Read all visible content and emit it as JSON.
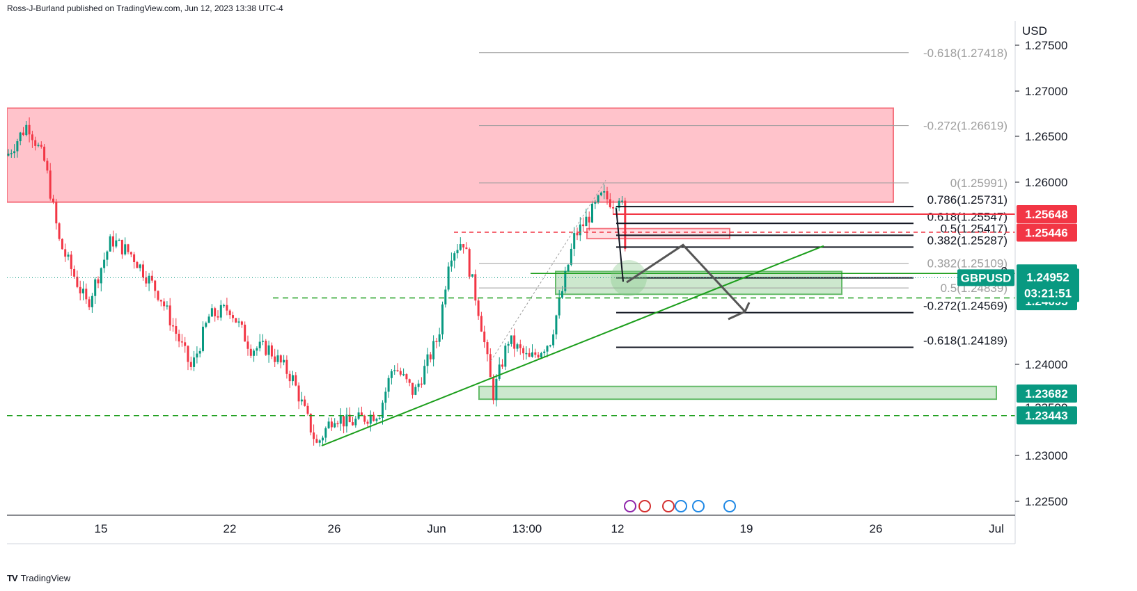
{
  "header": {
    "published_text": "Ross-J-Burland published on TradingView.com, Jun 12, 2023 13:38 UTC-4"
  },
  "footer": {
    "brand": "TradingView",
    "logo_glyph": "TV"
  },
  "chart_data": {
    "type": "candlestick",
    "symbol": "GBPUSD",
    "currency": "USD",
    "y_axis_ticks": [
      "1.27500",
      "1.27000",
      "1.26500",
      "1.26000",
      "1.24000",
      "1.23000",
      "1.22500"
    ],
    "y_axis_partial_tick": "1.23500",
    "x_axis_ticks": [
      "15",
      "22",
      "26",
      "Jun",
      "13:00",
      "12",
      "19",
      "26",
      "Jul"
    ],
    "ylim": [
      1.2237,
      1.2781
    ],
    "fib_upper": [
      {
        "label": "-0.618(1.27418)",
        "level": 1.27418
      },
      {
        "label": "-0.272(1.26619)",
        "level": 1.26619
      },
      {
        "label": "0(1.25991)",
        "level": 1.25991
      },
      {
        "label": "0.382(1.25109)",
        "level": 1.25109
      },
      {
        "label": "0.5(1.24839)",
        "level": 1.24839
      }
    ],
    "fib_lower": [
      {
        "label": "0.786(1.25731)",
        "level": 1.25731
      },
      {
        "label": "0.618(1.25547)",
        "level": 1.25547
      },
      {
        "label": "0.5(1.25417)",
        "level": 1.25417
      },
      {
        "label": "0.382(1.25287)",
        "level": 1.25287
      },
      {
        "label": "0",
        "level": 1.2495
      },
      {
        "label": "-0.272(1.24569)",
        "level": 1.24569
      },
      {
        "label": "-0.618(1.24189)",
        "level": 1.24189
      }
    ],
    "price_tags": [
      {
        "label": "1.25648",
        "value": 1.25648,
        "color": "#f23645"
      },
      {
        "label": "1.25446",
        "value": 1.25446,
        "color": "#f23645"
      },
      {
        "label": "1.24998",
        "value": 1.24998,
        "color": "#089981"
      },
      {
        "label": "1.24695",
        "value": 1.24695,
        "color": "#089981"
      },
      {
        "label": "1.23682",
        "value": 1.23682,
        "color": "#089981"
      },
      {
        "label": "1.23443",
        "value": 1.23443,
        "color": "#089981"
      }
    ],
    "current": {
      "symbol": "GBPUSD",
      "price": "1.24952",
      "countdown": "03:21:51",
      "value": 1.24952,
      "color": "#089981"
    },
    "dashed_levels": [
      1.2545,
      1.2473,
      1.2344
    ],
    "supply_zone": [
      1.2578,
      1.2681
    ],
    "demand_zones": [
      [
        1.2477,
        1.2502
      ],
      [
        1.2362,
        1.2376
      ]
    ],
    "trendline_start": 1.2311,
    "trendline_end": 1.253,
    "projection_path": [
      1.249,
      1.2531,
      1.2458
    ],
    "colors": {
      "up": "#089981",
      "down": "#f23645",
      "supply": "#ffc0c8",
      "demand": "#c8e6c9",
      "trend": "#1b9e1b"
    }
  }
}
